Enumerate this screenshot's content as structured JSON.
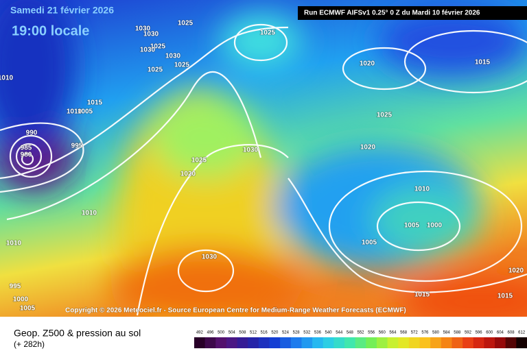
{
  "header": {
    "date": "Samedi 21 février 2026",
    "time": "19:00 locale",
    "run": "Run ECMWF AIFSv1 0.25° 0 Z du Mardi 10 février 2026"
  },
  "copyright": "Copyright © 2026 Meteociel.fr - Source European Centre for Medium-Range Weather Forecasts (ECMWF)",
  "footer": {
    "title": "Geop. Z500 & pression au sol",
    "lead": "(+ 282h)"
  },
  "legend": {
    "labels": [
      492,
      496,
      500,
      504,
      508,
      512,
      516,
      520,
      524,
      528,
      532,
      536,
      540,
      544,
      548,
      552,
      556,
      560,
      564,
      568,
      572,
      576,
      580,
      584,
      588,
      592,
      596,
      600,
      604,
      608,
      612
    ]
  },
  "isobars": [
    "1030",
    "1030",
    "1025",
    "1025",
    "1025",
    "1030",
    "1030",
    "1025",
    "1025",
    "1020",
    "1015",
    "1010",
    "1015",
    "1010",
    "1005",
    "1025",
    "990",
    "995",
    "985",
    "980",
    "1030",
    "1020",
    "1025",
    "1020",
    "1010",
    "1010",
    "1005",
    "1000",
    "1010",
    "1005",
    "1030",
    "1020",
    "995",
    "1015",
    "1015",
    "1000",
    "1005"
  ]
}
